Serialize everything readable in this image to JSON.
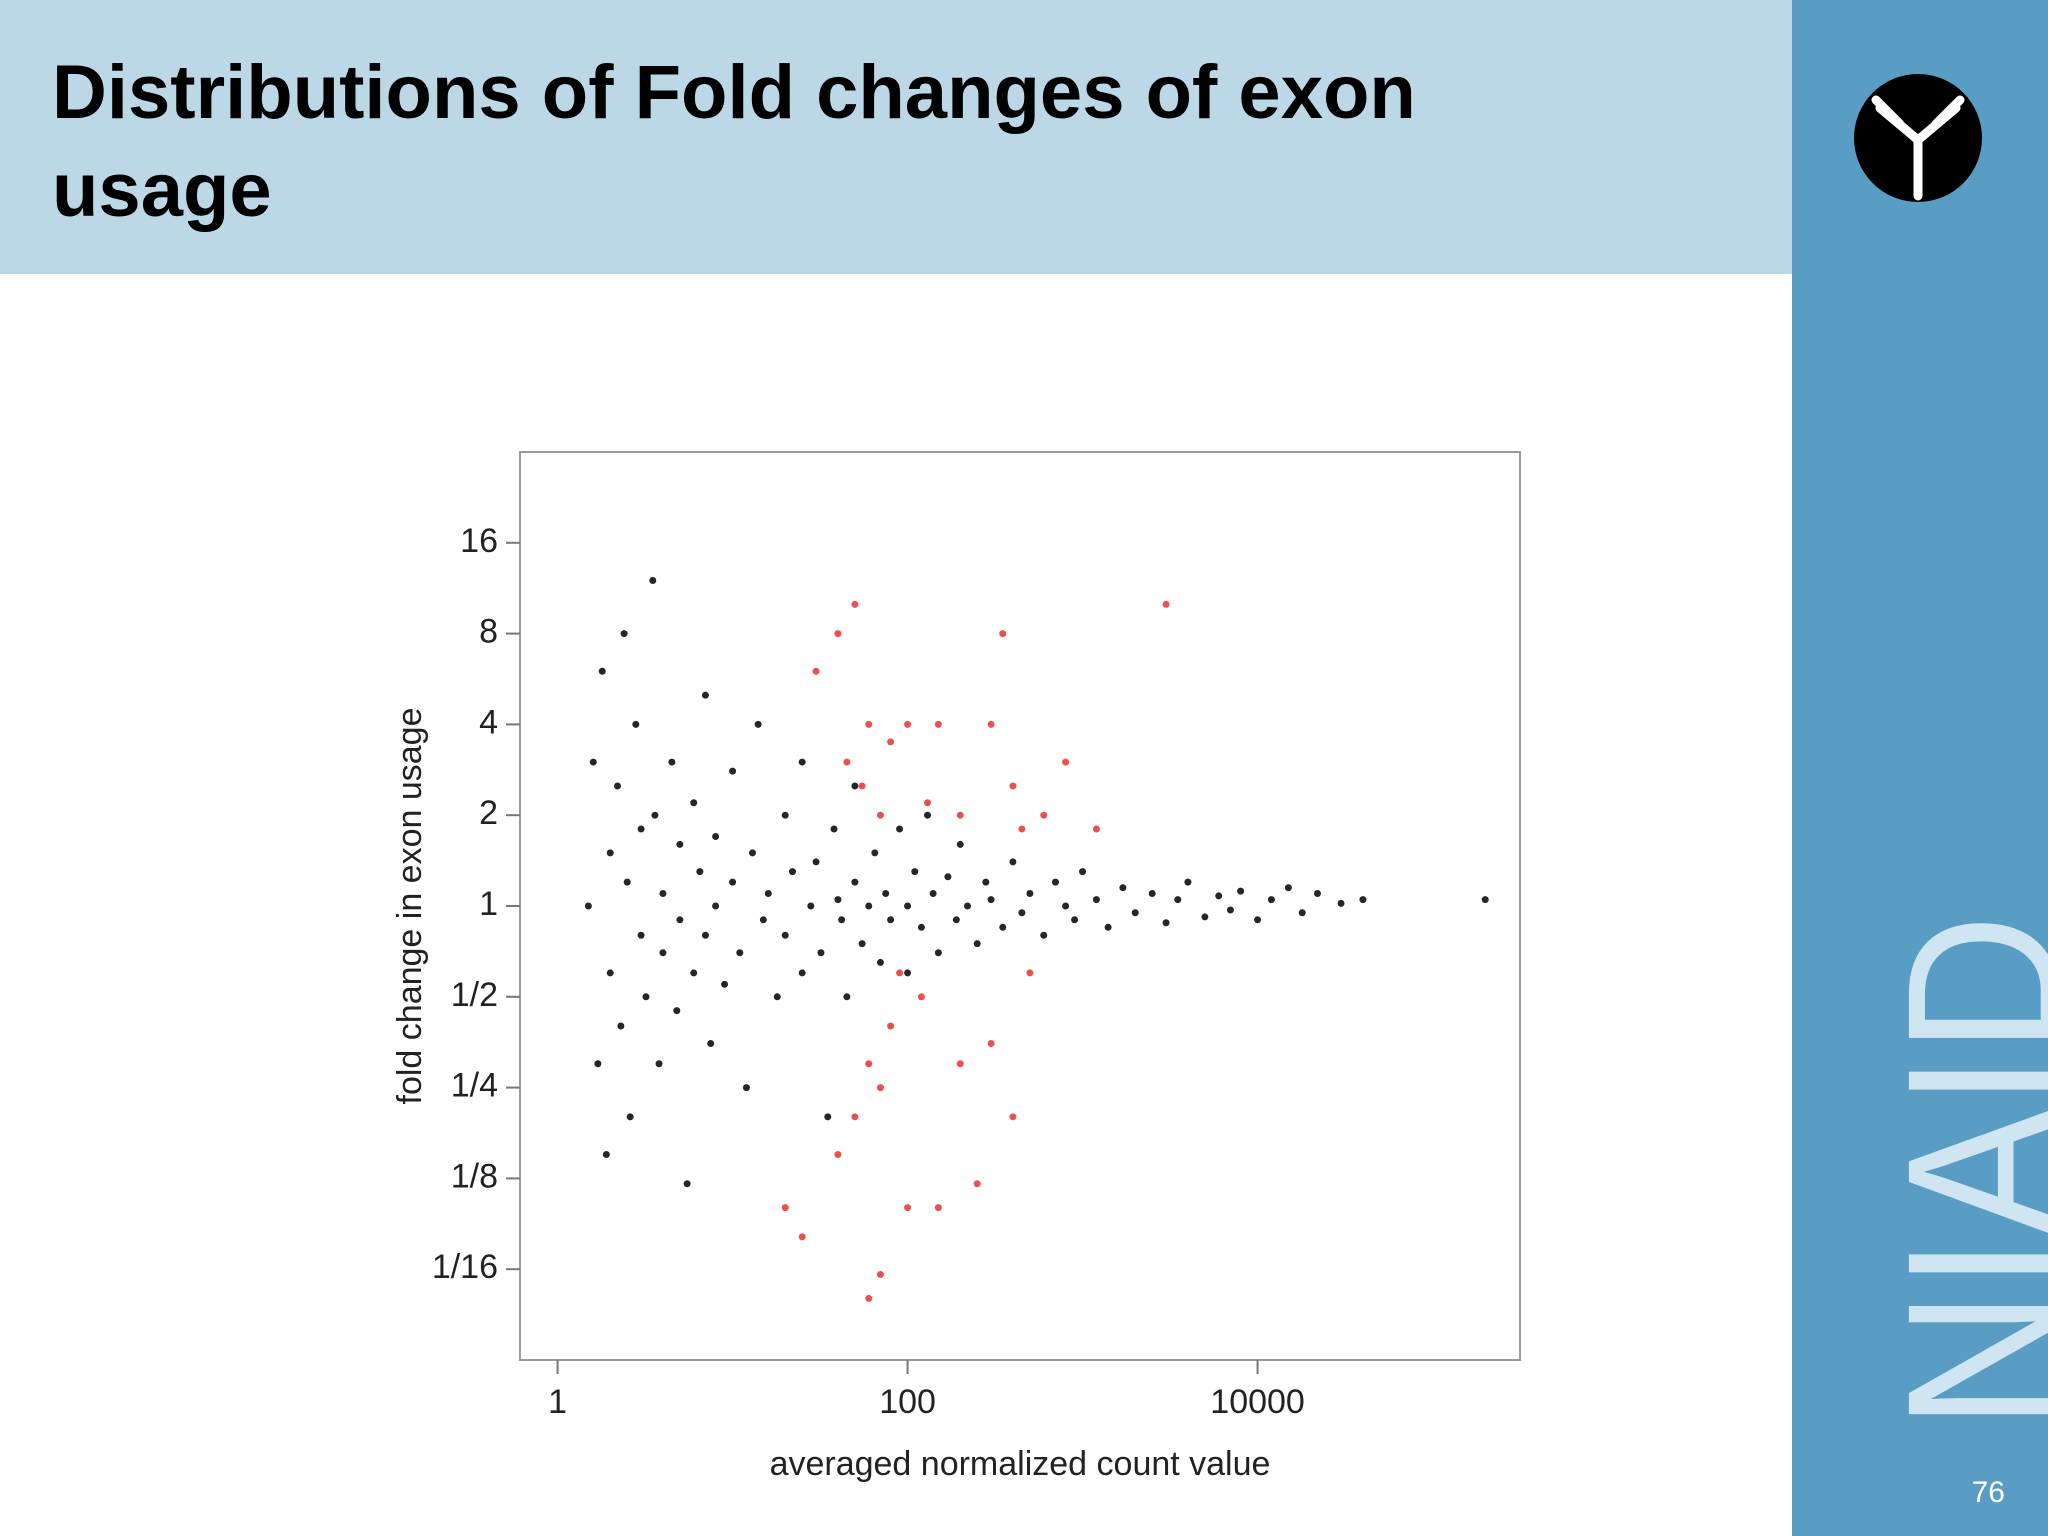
{
  "slide": {
    "title_lines": [
      "Distributions of Fold changes of exon",
      "usage"
    ],
    "logo_text": "NIAID",
    "page_number": "76"
  },
  "chart_data": {
    "type": "scatter",
    "xlabel": "averaged normalized count value",
    "ylabel": "fold change in exon usage",
    "xlog": true,
    "ylog": true,
    "xlim": [
      0.61,
      316000
    ],
    "ylim": [
      0.03125,
      32
    ],
    "xticks": [
      1,
      100,
      10000
    ],
    "yticks": [
      {
        "value": 0.0625,
        "label": "1/16"
      },
      {
        "value": 0.125,
        "label": "1/8"
      },
      {
        "value": 0.25,
        "label": "1/4"
      },
      {
        "value": 0.5,
        "label": "1/2"
      },
      1,
      2,
      4,
      8,
      16
    ],
    "series": [
      {
        "color": "#000000",
        "x": [
          1.5,
          1.6,
          1.7,
          1.8,
          1.9,
          2,
          2,
          2.2,
          2.3,
          2.4,
          2.5,
          2.6,
          2.8,
          3,
          3,
          3.2,
          3.5,
          3.6,
          3.8,
          4,
          4,
          4.5,
          4.8,
          5,
          5,
          5.5,
          6,
          6,
          6.5,
          7,
          7,
          7.5,
          8,
          8,
          9,
          10,
          10,
          11,
          12,
          13,
          14,
          15,
          16,
          18,
          20,
          20,
          22,
          25,
          25,
          28,
          30,
          32,
          35,
          38,
          40,
          42,
          45,
          50,
          50,
          55,
          60,
          65,
          70,
          75,
          80,
          90,
          100,
          100,
          110,
          120,
          130,
          140,
          150,
          170,
          190,
          200,
          220,
          250,
          280,
          300,
          350,
          400,
          450,
          500,
          600,
          700,
          800,
          900,
          1000,
          1200,
          1400,
          1700,
          2000,
          2500,
          3000,
          3500,
          4000,
          5000,
          6000,
          7000,
          8000,
          10000,
          12000,
          15000,
          18000,
          22000,
          30000,
          40000,
          200000
        ],
        "values": [
          1,
          3,
          0.3,
          6,
          0.15,
          1.5,
          0.6,
          2.5,
          0.4,
          8,
          1.2,
          0.2,
          4,
          0.8,
          1.8,
          0.5,
          12,
          2,
          0.3,
          1.1,
          0.7,
          3,
          0.45,
          1.6,
          0.9,
          0.12,
          2.2,
          0.6,
          1.3,
          5,
          0.8,
          0.35,
          1.7,
          1,
          0.55,
          2.8,
          1.2,
          0.7,
          0.25,
          1.5,
          4,
          0.9,
          1.1,
          0.5,
          2,
          0.8,
          1.3,
          0.6,
          3,
          1,
          1.4,
          0.7,
          0.2,
          1.8,
          1.05,
          0.9,
          0.5,
          2.5,
          1.2,
          0.75,
          1,
          1.5,
          0.65,
          1.1,
          0.9,
          1.8,
          1,
          0.6,
          1.3,
          0.85,
          2,
          1.1,
          0.7,
          1.25,
          0.9,
          1.6,
          1,
          0.75,
          1.2,
          1.05,
          0.85,
          1.4,
          0.95,
          1.1,
          0.8,
          1.2,
          1,
          0.9,
          1.3,
          1.05,
          0.85,
          1.15,
          0.95,
          1.1,
          0.88,
          1.05,
          1.2,
          0.92,
          1.08,
          0.97,
          1.12,
          0.9,
          1.05,
          1.15,
          0.95,
          1.1,
          1.02,
          1.05,
          1.05
        ]
      },
      {
        "color": "#e8312f",
        "x": [
          30,
          40,
          50,
          60,
          45,
          55,
          70,
          80,
          100,
          130,
          150,
          200,
          300,
          350,
          400,
          450,
          600,
          800,
          1200,
          3000,
          60,
          70,
          50,
          80,
          40,
          90,
          120,
          150,
          200,
          300,
          400,
          60,
          20,
          25,
          100,
          70,
          250,
          500
        ],
        "values": [
          6,
          8,
          10,
          4,
          3,
          2.5,
          2,
          3.5,
          4,
          2.2,
          4,
          2,
          4,
          8,
          2.5,
          1.8,
          2,
          3,
          1.8,
          10,
          0.3,
          0.25,
          0.2,
          0.4,
          0.15,
          0.6,
          0.5,
          0.1,
          0.3,
          0.35,
          0.2,
          0.05,
          0.1,
          0.08,
          0.1,
          0.06,
          0.12,
          0.6
        ]
      }
    ]
  }
}
